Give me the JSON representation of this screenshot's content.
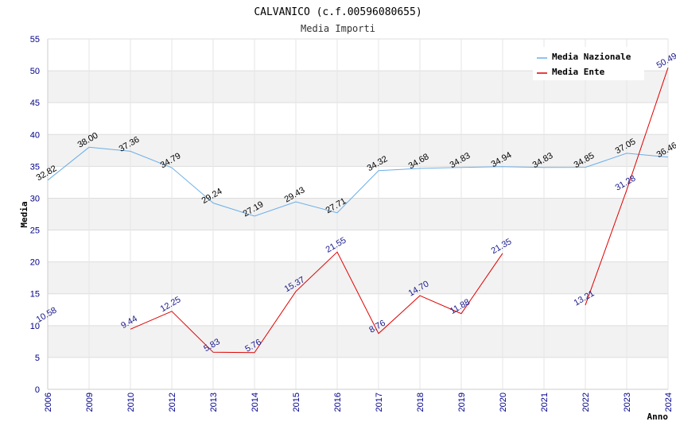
{
  "chart_data": {
    "type": "line",
    "title": "CALVANICO (c.f.00596080655)",
    "subtitle": "Media Importi",
    "xlabel": "Anno",
    "ylabel": "Media",
    "ylim": [
      0,
      55
    ],
    "yticks": [
      0,
      5,
      10,
      15,
      20,
      25,
      30,
      35,
      40,
      45,
      50,
      55
    ],
    "categories": [
      "2006",
      "2009",
      "2010",
      "2012",
      "2013",
      "2014",
      "2015",
      "2016",
      "2017",
      "2018",
      "2019",
      "2020",
      "2021",
      "2022",
      "2023",
      "2024"
    ],
    "series": [
      {
        "name": "Media Nazionale",
        "color": "#6aaee8",
        "values": [
          32.82,
          38.0,
          37.36,
          34.79,
          29.24,
          27.19,
          29.43,
          27.71,
          34.32,
          34.68,
          34.83,
          34.94,
          34.83,
          34.85,
          37.05,
          36.46
        ],
        "labels": [
          "32.82",
          "38.00",
          "37.36",
          "34.79",
          "29.24",
          "27.19",
          "29.43",
          "27.71",
          "34.32",
          "34.68",
          "34.83",
          "34.94",
          "34.83",
          "34.85",
          "37.05",
          "36.46"
        ]
      },
      {
        "name": "Media Ente",
        "color": "#e00000",
        "values": [
          10.58,
          null,
          9.44,
          12.25,
          5.83,
          5.76,
          15.37,
          21.55,
          8.76,
          14.7,
          11.88,
          21.35,
          null,
          13.21,
          31.28,
          50.49
        ],
        "labels": [
          "10.58",
          null,
          "9.44",
          "12.25",
          "5.83",
          "5.76",
          "15.37",
          "21.55",
          "8.76",
          "14.70",
          "11.88",
          "21.35",
          null,
          "13.21",
          "31.28",
          "50.49"
        ]
      }
    ],
    "legend": {
      "position": "top-right",
      "entries": [
        "Media Nazionale",
        "Media Ente"
      ]
    },
    "grid": true
  }
}
